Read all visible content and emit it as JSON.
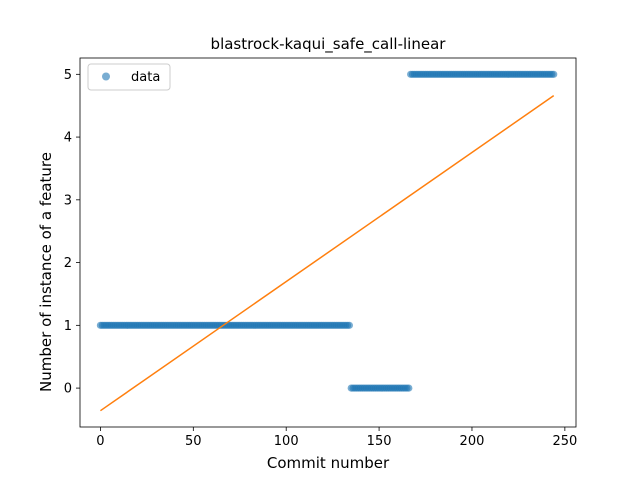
{
  "chart_data": {
    "type": "scatter",
    "title": "blastrock-kaqui_safe_call-linear",
    "xlabel": "Commit number",
    "ylabel": "Number of instance of a feature",
    "xlim": [
      -11,
      256
    ],
    "ylim": [
      -0.62,
      5.26
    ],
    "xticks": [
      0,
      50,
      100,
      150,
      200,
      250
    ],
    "yticks": [
      0,
      1,
      2,
      3,
      4,
      5
    ],
    "legend": {
      "placement": "upper-left",
      "entries": [
        "data"
      ]
    },
    "series": [
      {
        "name": "data",
        "kind": "scatter",
        "color": "#1f77b4",
        "segments": [
          {
            "x_start": 0,
            "x_end": 134,
            "y": 1
          },
          {
            "x_start": 135,
            "x_end": 166,
            "y": 0
          },
          {
            "x_start": 167,
            "x_end": 244,
            "y": 5
          }
        ]
      },
      {
        "kind": "line",
        "color": "#ff7f0e",
        "points": [
          [
            0,
            -0.36
          ],
          [
            244,
            4.66
          ]
        ]
      }
    ]
  }
}
